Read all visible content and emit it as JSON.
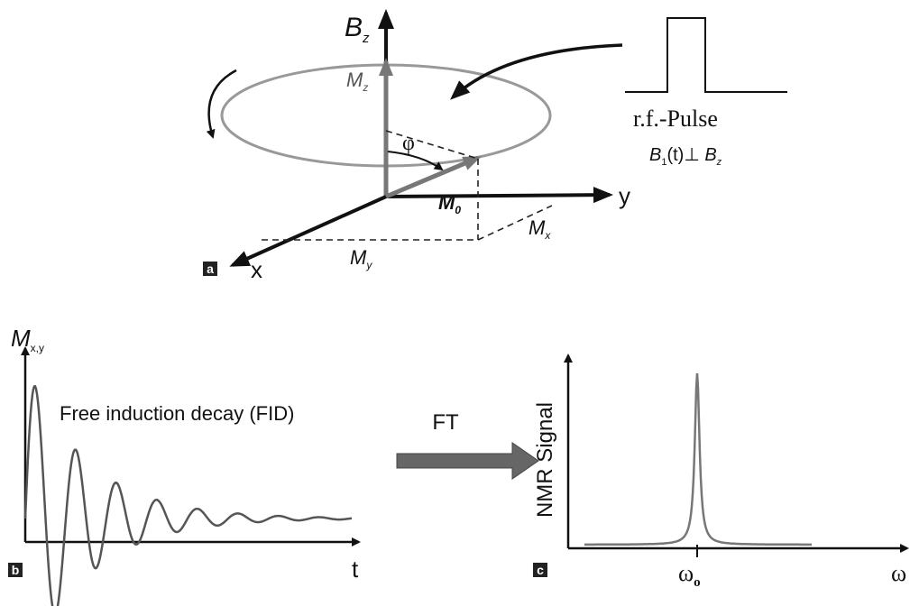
{
  "panel_a": {
    "letter": "a",
    "axis_z": {
      "main": "B",
      "sub": "z"
    },
    "mz": {
      "main": "M",
      "sub": "z"
    },
    "angle": "φ",
    "m0": {
      "main": "M",
      "sub": "0"
    },
    "axis_y": "y",
    "axis_x": "x",
    "my": {
      "main": "M",
      "sub": "y"
    },
    "mx": {
      "main": "M",
      "sub": "x"
    },
    "pulse_label": "r.f.-Pulse",
    "pulse_condition": [
      "B",
      "1",
      "(t)⊥ ",
      "B",
      "z"
    ]
  },
  "panel_b": {
    "letter": "b",
    "y_label": {
      "main": "M",
      "sub": "x,y"
    },
    "caption": "Free induction decay (FID)",
    "x_label": "t"
  },
  "transform": "FT",
  "panel_c": {
    "letter": "c",
    "y_label": "NMR Signal",
    "peak_label": {
      "main": "ω",
      "sub": "o"
    },
    "x_label": "ω"
  }
}
